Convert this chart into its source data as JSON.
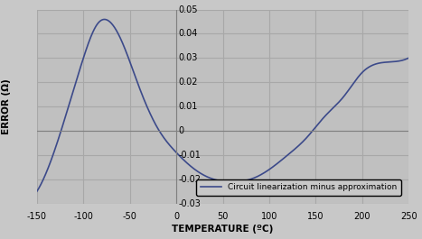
{
  "xlim": [
    -150,
    250
  ],
  "ylim": [
    -0.03,
    0.05
  ],
  "xticks": [
    -150,
    -100,
    -50,
    0,
    50,
    100,
    150,
    200,
    250
  ],
  "yticks": [
    -0.03,
    -0.02,
    -0.01,
    0,
    0.01,
    0.02,
    0.03,
    0.04,
    0.05
  ],
  "xlabel": "TEMPERATURE (ºC)",
  "ylabel": "ERROR (Ω)",
  "legend_label": "Circuit linearization minus approximation",
  "line_color": "#3c4a8a",
  "bg_color": "#c0c0c0",
  "fig_bg_color": "#c8c8c8",
  "grid_color": "#b0b0b0",
  "legend_bg": "#c8c8c8",
  "figsize": [
    4.67,
    2.65
  ],
  "dpi": 100,
  "key_points_T": [
    -150,
    -120,
    -100,
    -85,
    -60,
    -40,
    -20,
    0,
    20,
    40,
    60,
    80,
    100,
    120,
    140,
    160,
    180,
    200,
    220,
    250
  ],
  "key_points_E": [
    -0.025,
    0.005,
    0.03,
    0.044,
    0.038,
    0.018,
    0.001,
    -0.009,
    -0.016,
    -0.02,
    -0.021,
    -0.02,
    -0.016,
    -0.01,
    -0.003,
    0.006,
    0.014,
    0.024,
    0.028,
    0.03
  ]
}
